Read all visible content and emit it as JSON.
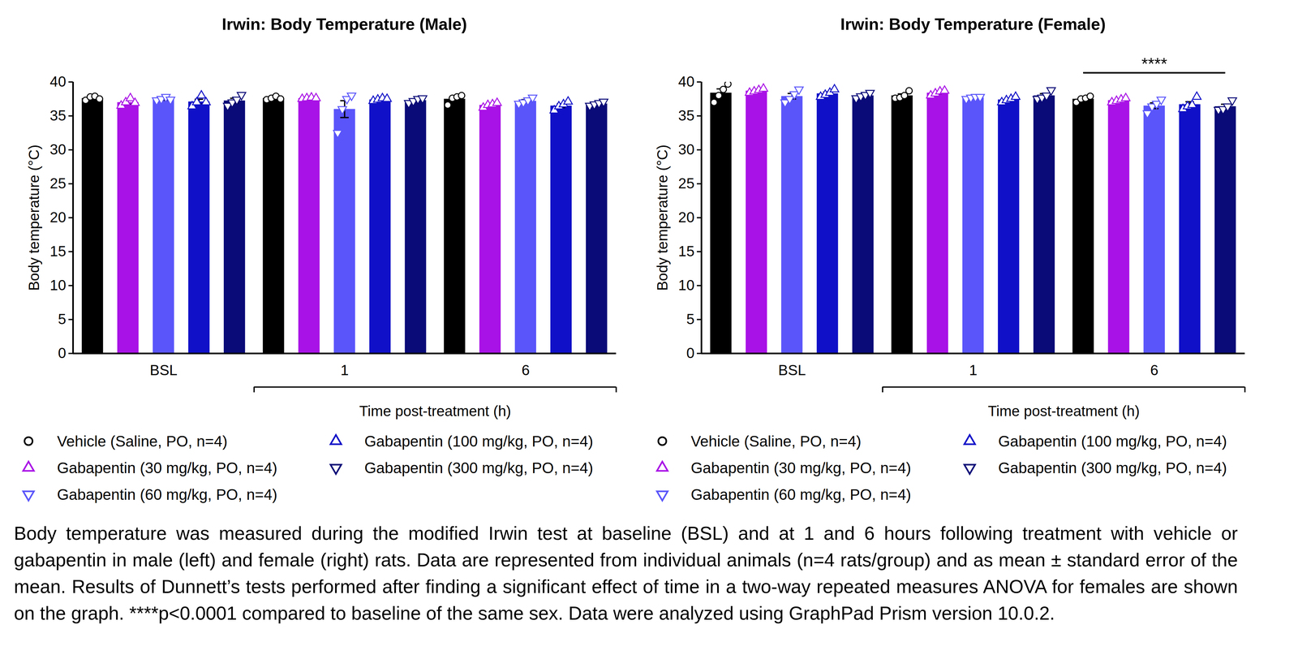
{
  "chart_data": [
    {
      "type": "bar",
      "title": "Irwin: Body Temperature (Male)",
      "categories": [
        "BSL",
        "1",
        "6"
      ],
      "xlabel": "Time post-treatment (h)",
      "ylabel": "Body temperature (°C)",
      "ylim": [
        0,
        40
      ],
      "yticks": [
        0,
        5,
        10,
        15,
        20,
        25,
        30,
        35,
        40
      ],
      "legend": "bottom",
      "series": [
        {
          "name": "Vehicle (Saline, PO, n=4)",
          "color": "#000000",
          "marker": "circle",
          "values": [
            37.6,
            37.6,
            37.5
          ],
          "errors": [
            0.14,
            0.11,
            0.31
          ],
          "points": [
            [
              37.3,
              37.8,
              37.9,
              37.5
            ],
            [
              37.4,
              37.6,
              37.9,
              37.5
            ],
            [
              36.6,
              37.6,
              37.8,
              38.0
            ]
          ]
        },
        {
          "name": "Gabapentin (30 mg/kg, PO, n=4)",
          "color": "#a912e6",
          "marker": "triangle-up",
          "values": [
            37.0,
            37.6,
            36.6
          ],
          "errors": [
            0.3,
            0.05,
            0.15
          ],
          "points": [
            [
              36.5,
              37.0,
              37.6,
              36.9
            ],
            [
              37.5,
              37.6,
              37.7,
              37.6
            ],
            [
              36.2,
              36.6,
              36.7,
              36.9
            ]
          ]
        },
        {
          "name": "Gabapentin (60 mg/kg, PO, n=4)",
          "color": "#5a55fa",
          "marker": "triangle-down",
          "values": [
            37.5,
            36.0,
            37.2
          ],
          "errors": [
            0.2,
            1.24,
            0.2
          ],
          "points": [
            [
              37.3,
              37.5,
              37.8,
              37.4
            ],
            [
              32.5,
              36.0,
              37.5,
              38.0
            ],
            [
              36.8,
              37.0,
              37.3,
              37.7
            ]
          ]
        },
        {
          "name": "Gabapentin (100 mg/kg, PO, n=4)",
          "color": "#1010c8",
          "marker": "triangle-up",
          "values": [
            37.1,
            37.4,
            36.5
          ],
          "errors": [
            0.35,
            0.09,
            0.27
          ],
          "points": [
            [
              36.4,
              37.0,
              38.0,
              37.0
            ],
            [
              37.2,
              37.4,
              37.6,
              37.5
            ],
            [
              35.8,
              36.4,
              36.7,
              37.1
            ]
          ]
        },
        {
          "name": "Gabapentin (300 mg/kg, PO, n=4)",
          "color": "#0a0a78",
          "marker": "triangle-down",
          "values": [
            37.25,
            37.3,
            36.8
          ],
          "errors": [
            0.35,
            0.16,
            0.13
          ],
          "points": [
            [
              36.5,
              37.0,
              37.4,
              38.1
            ],
            [
              36.9,
              37.2,
              37.5,
              37.6
            ],
            [
              36.5,
              36.7,
              36.9,
              37.1
            ]
          ]
        }
      ]
    },
    {
      "type": "bar",
      "title": "Irwin: Body Temperature (Female)",
      "categories": [
        "BSL",
        "1",
        "6"
      ],
      "xlabel": "Time post-treatment (h)",
      "ylabel": "Body temperature (°C)",
      "ylim": [
        0,
        40
      ],
      "yticks": [
        0,
        5,
        10,
        15,
        20,
        25,
        30,
        35,
        40
      ],
      "legend": "bottom",
      "annotations": [
        {
          "text": "****",
          "category": "6"
        }
      ],
      "series": [
        {
          "name": "Vehicle (Saline, PO, n=4)",
          "color": "#000000",
          "marker": "circle",
          "values": [
            38.4,
            38.0,
            37.5
          ],
          "errors": [
            0.58,
            0.25,
            0.19
          ],
          "points": [
            [
              37.0,
              38.0,
              38.9,
              39.7
            ],
            [
              37.6,
              37.7,
              38.0,
              38.7
            ],
            [
              37.0,
              37.5,
              37.6,
              37.9
            ]
          ]
        },
        {
          "name": "Gabapentin (30 mg/kg, PO, n=4)",
          "color": "#a912e6",
          "marker": "triangle-up",
          "values": [
            38.7,
            38.4,
            37.3
          ],
          "errors": [
            0.13,
            0.16,
            0.13
          ],
          "points": [
            [
              38.4,
              38.6,
              38.8,
              39.0
            ],
            [
              38.0,
              38.3,
              38.6,
              38.7
            ],
            [
              37.0,
              37.2,
              37.4,
              37.6
            ]
          ]
        },
        {
          "name": "Gabapentin (60 mg/kg, PO, n=4)",
          "color": "#5a55fa",
          "marker": "triangle-down",
          "values": [
            37.9,
            37.7,
            36.5
          ],
          "errors": [
            0.41,
            0.07,
            0.42
          ],
          "points": [
            [
              37.0,
              37.5,
              38.2,
              38.9
            ],
            [
              37.5,
              37.7,
              37.8,
              37.8
            ],
            [
              35.4,
              36.4,
              36.8,
              37.4
            ]
          ]
        },
        {
          "name": "Gabapentin (100 mg/kg, PO, n=4)",
          "color": "#1010c8",
          "marker": "triangle-up",
          "values": [
            38.3,
            37.4,
            36.7
          ],
          "errors": [
            0.23,
            0.17,
            0.39
          ],
          "points": [
            [
              37.8,
              38.1,
              38.4,
              38.9
            ],
            [
              37.0,
              37.3,
              37.5,
              37.8
            ],
            [
              36.0,
              36.4,
              36.6,
              37.8
            ]
          ]
        },
        {
          "name": "Gabapentin (300 mg/kg, PO, n=4)",
          "color": "#0a0a78",
          "marker": "triangle-down",
          "values": [
            38.0,
            38.0,
            36.4
          ],
          "errors": [
            0.17,
            0.28,
            0.32
          ],
          "points": [
            [
              37.6,
              37.9,
              38.1,
              38.4
            ],
            [
              37.5,
              37.7,
              38.0,
              38.8
            ],
            [
              35.9,
              36.0,
              36.4,
              37.3
            ]
          ]
        }
      ]
    }
  ],
  "caption": "Body temperature was measured during the modified Irwin test at baseline (BSL) and at 1 and 6 hours following treatment with vehicle or gabapentin in male (left) and female (right) rats. Data are represented from individual animals (n=4 rats/group) and as mean ± standard error of the mean. Results of Dunnett’s tests performed after finding a significant effect of time in a two-way repeated measures ANOVA for females are shown on the graph. ****p<0.0001 compared to baseline of the same sex. Data were analyzed using GraphPad Prism version 10.0.2."
}
